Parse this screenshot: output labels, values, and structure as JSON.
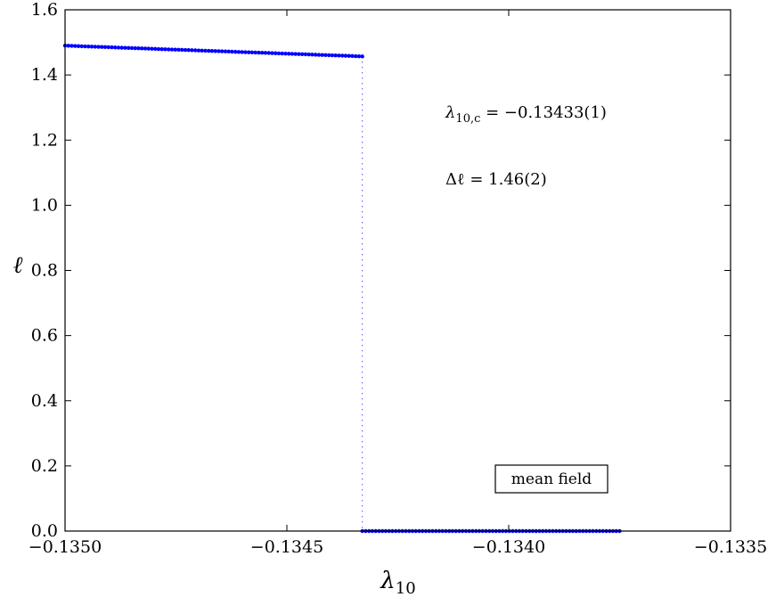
{
  "chart_data": {
    "type": "scatter",
    "title": "",
    "xlabel": "λ10",
    "ylabel": "ℓ",
    "xlim": [
      -0.135,
      -0.1335
    ],
    "ylim": [
      0.0,
      1.6
    ],
    "grid": false,
    "x_ticks": [
      -0.135,
      -0.1345,
      -0.134,
      -0.1335
    ],
    "x_tick_labels": [
      "−0.1350",
      "−0.1345",
      "−0.1340",
      "−0.1335"
    ],
    "y_ticks": [
      0.0,
      0.2,
      0.4,
      0.6,
      0.8,
      1.0,
      1.2,
      1.4,
      1.6
    ],
    "y_tick_labels": [
      "0.0",
      "0.2",
      "0.4",
      "0.6",
      "0.8",
      "1.0",
      "1.2",
      "1.4",
      "1.6"
    ],
    "series": [
      {
        "color": "#0000ff",
        "marker": "dot",
        "segments": [
          {
            "x_start": -0.135,
            "x_end": -0.13433,
            "y_start": 1.49,
            "y_end": 1.457
          },
          {
            "x_start": -0.13433,
            "x_end": -0.13375,
            "y_start": 0.0,
            "y_end": 0.0
          }
        ],
        "transition": {
          "x": -0.13433,
          "y_from": 1.457,
          "y_to": 0.0,
          "style": "dotted"
        }
      }
    ],
    "annotations": [
      {
        "text": "λ10,c = −0.13433(1)"
      },
      {
        "text": "Δℓ = 1.46(2)"
      }
    ],
    "legend": {
      "text": "mean field",
      "boxed": true
    }
  }
}
